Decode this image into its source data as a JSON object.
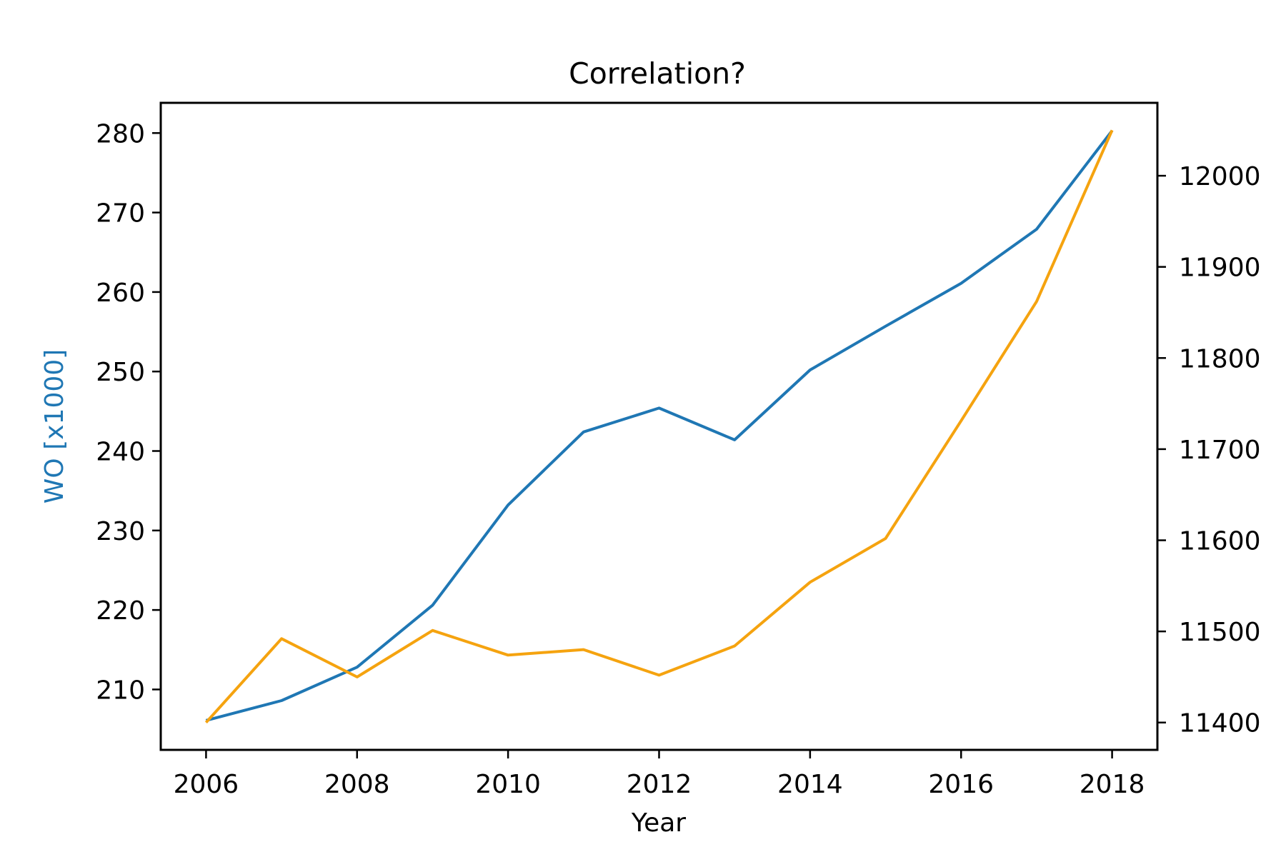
{
  "chart_data": {
    "type": "line",
    "title": "Correlation?",
    "xlabel": "Year",
    "ylabel_left": "WO [x1000]",
    "ylabel_right": "",
    "x": [
      2006,
      2007,
      2008,
      2009,
      2010,
      2011,
      2012,
      2013,
      2014,
      2015,
      2016,
      2017,
      2018
    ],
    "x_ticks": [
      2006,
      2008,
      2010,
      2012,
      2014,
      2016,
      2018
    ],
    "xlim": [
      2005.4,
      2018.6
    ],
    "y_left_ticks": [
      210,
      220,
      230,
      240,
      250,
      260,
      270,
      280
    ],
    "y_left_lim": [
      202.4,
      283.8
    ],
    "y_right_ticks": [
      11400,
      11500,
      11600,
      11700,
      11800,
      11900,
      12000
    ],
    "y_right_lim": [
      11370,
      12080
    ],
    "grid": false,
    "series": [
      {
        "axis": "left",
        "color": "#1f77b4",
        "values": [
          206.1,
          208.6,
          212.8,
          220.6,
          233.2,
          242.4,
          245.4,
          241.4,
          250.2,
          255.7,
          261.1,
          267.9,
          280.3
        ]
      },
      {
        "axis": "right",
        "color": "#f5a30f",
        "values": [
          11400,
          11492,
          11450,
          11501,
          11474,
          11480,
          11452,
          11484,
          11554,
          11602,
          11731,
          11862,
          12050
        ]
      }
    ],
    "colors": {
      "left_axis_label": "#1f77b4",
      "right_axis_label": "#f5a30f"
    }
  }
}
